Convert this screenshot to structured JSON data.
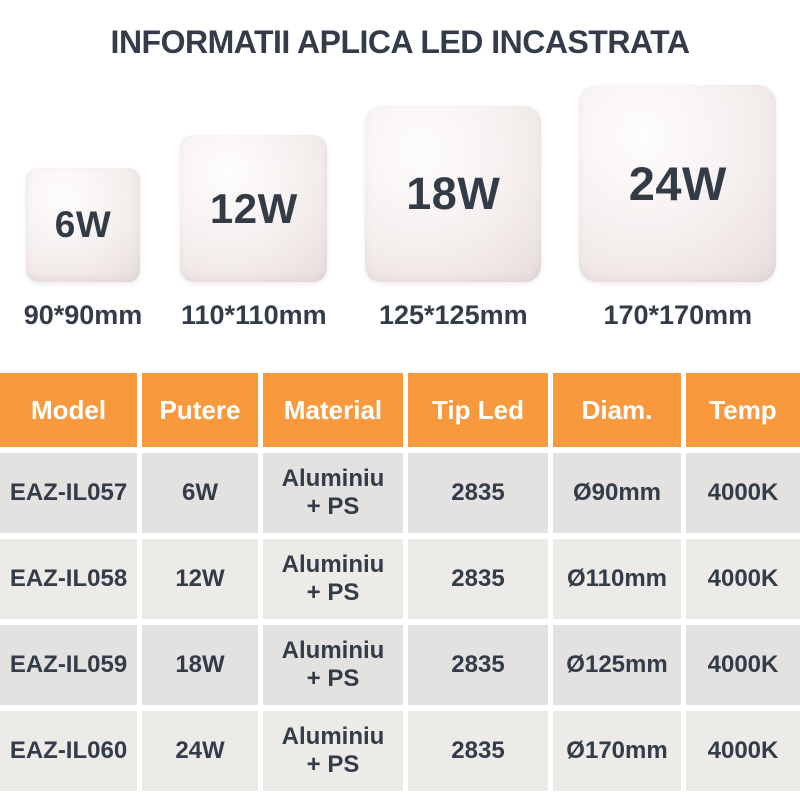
{
  "title": "INFORMATII APLICA LED INCASTRATA",
  "colors": {
    "accent_orange": "#F8993D",
    "clip_orange": "#EE4A1C",
    "text_dark": "#343C49",
    "header_text": "#FFFFFF",
    "row_bg_dark": "#E3E2E0",
    "row_bg_light": "#ECEBE8"
  },
  "products": [
    {
      "watt": "6W",
      "size": "90*90mm"
    },
    {
      "watt": "12W",
      "size": "110*110mm"
    },
    {
      "watt": "18W",
      "size": "125*125mm"
    },
    {
      "watt": "24W",
      "size": "170*170mm"
    }
  ],
  "table": {
    "headers": [
      "Model",
      "Putere",
      "Material",
      "Tip Led",
      "Diam.",
      "Temp"
    ],
    "rows": [
      [
        "EAZ-IL057",
        "6W",
        "Aluminiu + PS",
        "2835",
        "Ø90mm",
        "4000K"
      ],
      [
        "EAZ-IL058",
        "12W",
        "Aluminiu + PS",
        "2835",
        "Ø110mm",
        "4000K"
      ],
      [
        "EAZ-IL059",
        "18W",
        "Aluminiu + PS",
        "2835",
        "Ø125mm",
        "4000K"
      ],
      [
        "EAZ-IL060",
        "24W",
        "Aluminiu + PS",
        "2835",
        "Ø170mm",
        "4000K"
      ]
    ]
  }
}
